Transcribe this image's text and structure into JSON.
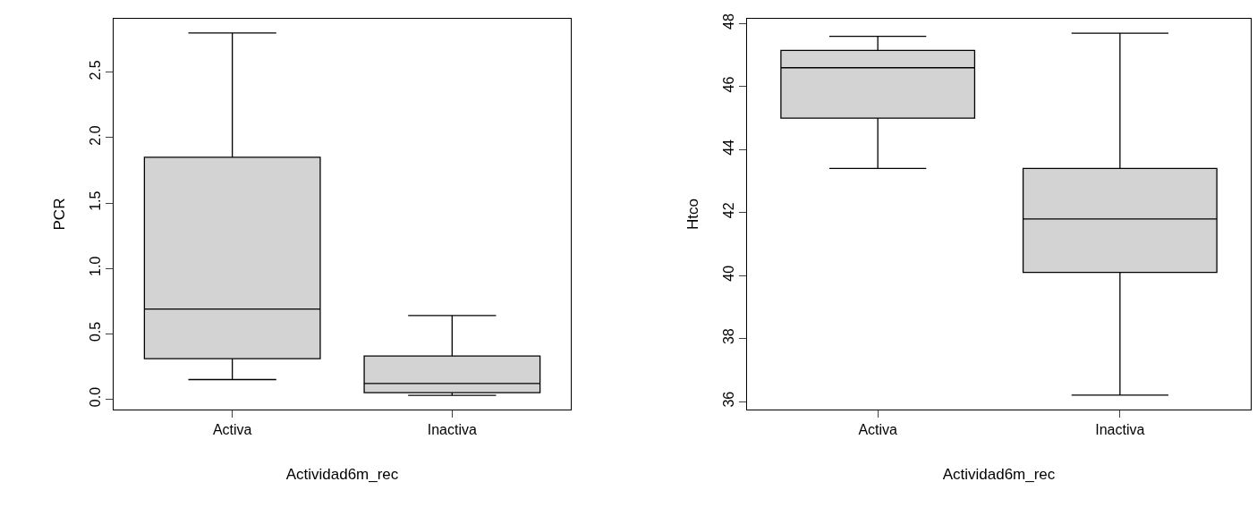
{
  "chart_data": [
    {
      "type": "box",
      "xlabel": "Actividad6m_rec",
      "ylabel": "PCR",
      "categories": [
        "Activa",
        "Inactiva"
      ],
      "ylim": [
        -0.08,
        2.91
      ],
      "yticks": [
        {
          "value": 0,
          "label": "0.0"
        },
        0.5,
        {
          "value": 1,
          "label": "1.0"
        },
        1.5,
        {
          "value": 2,
          "label": "2.0"
        },
        2.5
      ],
      "series": [
        {
          "color": "#d3d3d3",
          "boxes": [
            {
              "low": 0.15,
              "q1": 0.31,
              "median": 0.69,
              "q3": 1.85,
              "high": 2.8
            },
            {
              "low": 0.03,
              "q1": 0.05,
              "median": 0.12,
              "q3": 0.33,
              "high": 0.64
            }
          ]
        }
      ]
    },
    {
      "type": "box",
      "xlabel": "Actividad6m_rec",
      "ylabel": "Htco",
      "categories": [
        "Activa",
        "Inactiva"
      ],
      "ylim": [
        35.74,
        48.16
      ],
      "yticks": [
        36,
        38,
        40,
        42,
        44,
        46,
        48
      ],
      "series": [
        {
          "color": "#d3d3d3",
          "boxes": [
            {
              "low": 43.4,
              "q1": 45.0,
              "median": 46.6,
              "q3": 47.15,
              "high": 47.6
            },
            {
              "low": 36.2,
              "q1": 40.1,
              "median": 41.8,
              "q3": 43.4,
              "high": 47.7
            }
          ]
        }
      ]
    }
  ]
}
